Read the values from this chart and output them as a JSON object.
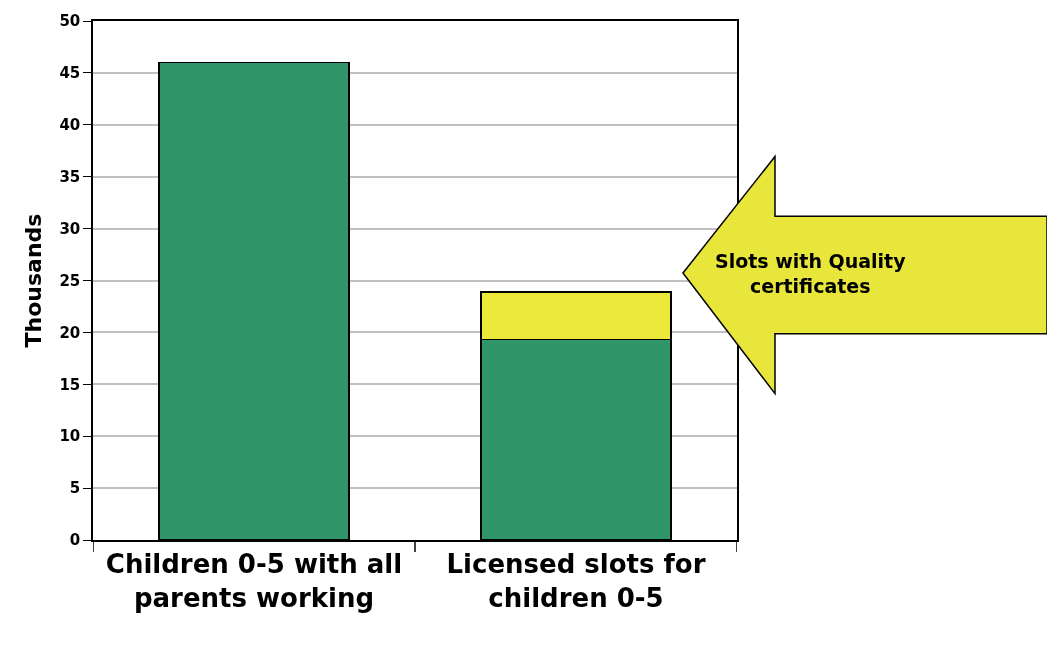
{
  "chart_data": {
    "type": "bar",
    "stacked": true,
    "ylabel": "Thousands",
    "categories": [
      "Children 0-5 with all parents working",
      "Licensed slots for children 0-5"
    ],
    "series": [
      {
        "color": "#31956a",
        "values": [
          46,
          19.3
        ]
      },
      {
        "color": "#ece93a",
        "values": [
          null,
          4.6
        ]
      }
    ],
    "ylim": [
      0,
      50
    ],
    "yticks": [
      0,
      5,
      10,
      15,
      20,
      25,
      30,
      35,
      40,
      45,
      50
    ],
    "grid": "y",
    "annotations": [
      "Slots with Quality certificates"
    ]
  }
}
